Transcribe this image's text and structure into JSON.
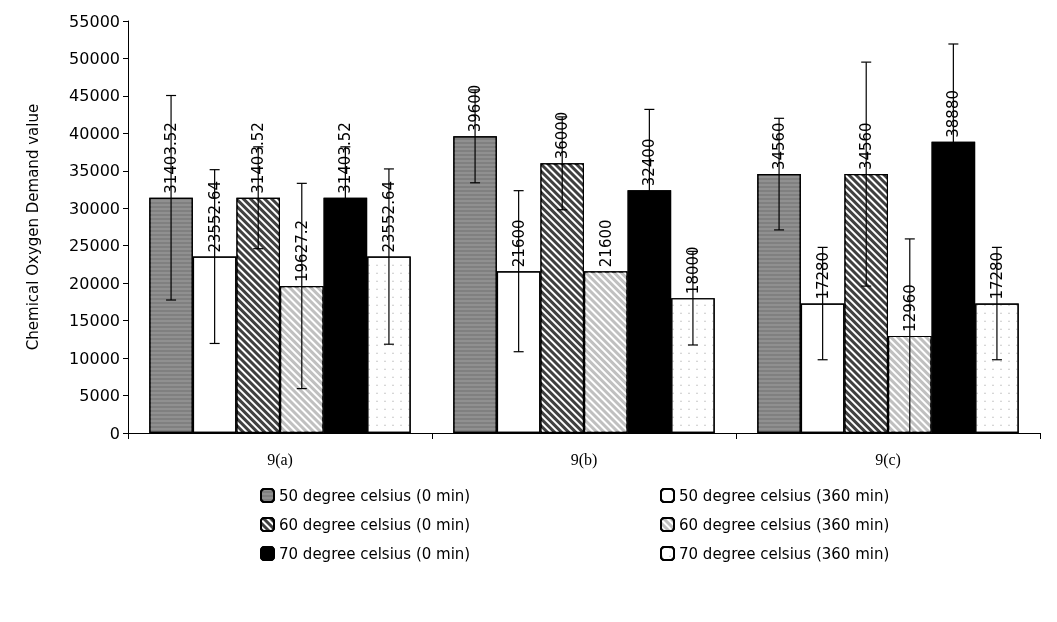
{
  "chart_data": {
    "type": "bar",
    "ylabel": "Chemical Oxygen Demand value",
    "categories": [
      "9(a)",
      "9(b)",
      "9(c)"
    ],
    "series": [
      {
        "name": "50 degree celsius (0 min)",
        "color": "#808080",
        "values": [
          31403.52,
          39600,
          34560
        ],
        "errors": [
          13650,
          6200,
          7450
        ]
      },
      {
        "name": "50 degree celsius (360 min)",
        "color": "#ffffff",
        "values": [
          23552.64,
          21600,
          17280
        ],
        "errors": [
          11600,
          10750,
          7500
        ]
      },
      {
        "name": "60 degree celsius (0 min)",
        "color": "#404040",
        "values": [
          31403.52,
          36000,
          34560
        ],
        "errors": [
          6800,
          6200,
          14950
        ]
      },
      {
        "name": "60 degree celsius (360 min)",
        "color": "#c0c0c0",
        "values": [
          19627.2,
          21600,
          12960
        ],
        "errors": [
          13700,
          null,
          12950
        ]
      },
      {
        "name": "70 degree celsius (0 min)",
        "color": "#000000",
        "values": [
          31403.52,
          32400,
          38880
        ],
        "errors": [
          6800,
          10800,
          13050
        ]
      },
      {
        "name": "70 degree celsius (360 min)",
        "color": "#ffffff",
        "values": [
          23552.64,
          18000,
          17280
        ],
        "errors": [
          11700,
          6250,
          7500
        ]
      }
    ],
    "ylim": [
      0,
      55000
    ],
    "yticks": [
      0,
      5000,
      10000,
      15000,
      20000,
      25000,
      30000,
      35000,
      40000,
      45000,
      50000,
      55000
    ],
    "grid": false,
    "legend": "bottom",
    "data_labels": true
  }
}
